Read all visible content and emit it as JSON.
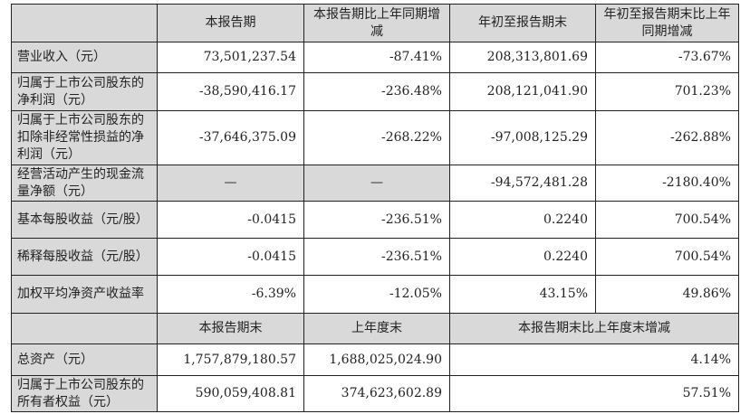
{
  "header": [
    "",
    "本报告期",
    "本报告期比上年同期增减",
    "年初至报告期末",
    "年初至报告期末比上年同期增减"
  ],
  "rows": [
    {
      "label": "营业收入（元）",
      "values": [
        "73,501,237.54",
        "-87.41%",
        "208,313,801.69",
        "-73.67%"
      ]
    },
    {
      "label": "归属于上市公司股东的净利润（元）",
      "values": [
        "-38,590,416.17",
        "-236.48%",
        "208,121,041.90",
        "701.23%"
      ]
    },
    {
      "label": "归属于上市公司股东的扣除非经常性损益的净利润（元）",
      "values": [
        "-37,646,375.09",
        "-268.22%",
        "-97,008,125.29",
        "-262.88%"
      ]
    },
    {
      "label": "经营活动产生的现金流量净额（元）",
      "values": [
        "—",
        "—",
        "-94,572,481.28",
        "-2180.40%"
      ]
    },
    {
      "label": "基本每股收益（元/股）",
      "values": [
        "-0.0415",
        "-236.51%",
        "0.2240",
        "700.54%"
      ]
    },
    {
      "label": "稀释每股收益（元/股）",
      "values": [
        "-0.0415",
        "-236.51%",
        "0.2240",
        "700.54%"
      ]
    },
    {
      "label": "加权平均净资产收益率",
      "values": [
        "-6.39%",
        "-12.05%",
        "43.15%",
        "49.86%"
      ]
    }
  ],
  "header2": [
    "",
    "本报告期末",
    "上年度末",
    "本报告期末比上年度末增减"
  ],
  "rows2": [
    {
      "label": "总资产（元）",
      "values": [
        "1,757,879,180.57",
        "1,688,025,024.90",
        "4.14%"
      ]
    },
    {
      "label": "归属于上市公司股东的所有者权益（元）",
      "values": [
        "590,059,408.81",
        "374,623,602.89",
        "57.51%"
      ]
    }
  ],
  "colors": {
    "shade": "#d9d9d9",
    "border": "#222222"
  }
}
